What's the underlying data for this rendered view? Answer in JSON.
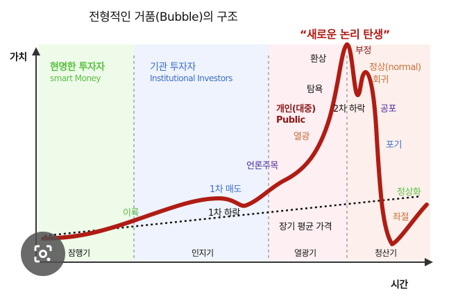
{
  "title": "전형적인 거품(Bubble)의 구조",
  "headline": "“새로운 논리 탄생”",
  "axes": {
    "y_label": "가치",
    "x_label": "시간"
  },
  "phases": [
    {
      "label": "잠행기",
      "actor": "현명한 투자자",
      "actor_en": "smart Money",
      "color": "#eefbe9"
    },
    {
      "label": "인지기",
      "actor": "기관 투자자",
      "actor_en": "Institutional Investors",
      "color": "#eef3fd"
    },
    {
      "label": "열광기",
      "actor": "개인(대중)",
      "actor_en": "Public",
      "color": "#fdeff2"
    },
    {
      "label": "청산기",
      "color": "#fdf0ec"
    }
  ],
  "annotations": {
    "profit": "이륙",
    "first_sell": "1차 매도",
    "first_drop": "1차 하락",
    "media": "언론주목",
    "mania": "열광",
    "greed": "탐욕",
    "illusion": "환상",
    "second_drop": "2차 하락",
    "denial": "부정",
    "return_normal_1": "정상(normal)",
    "return_normal_2": "회귀",
    "fear": "공포",
    "give_up": "포기",
    "despair": "좌절",
    "normalize": "정상화",
    "long_term_avg": "장기 평균 가격"
  },
  "colors": {
    "curve": "#b01c14",
    "green": "#5cc043",
    "blue": "#3d6fc7",
    "purple": "#4a2a9a",
    "orange": "#c8703a",
    "darkred": "#8b1a1a"
  },
  "lens_icon": "google-lens-icon"
}
